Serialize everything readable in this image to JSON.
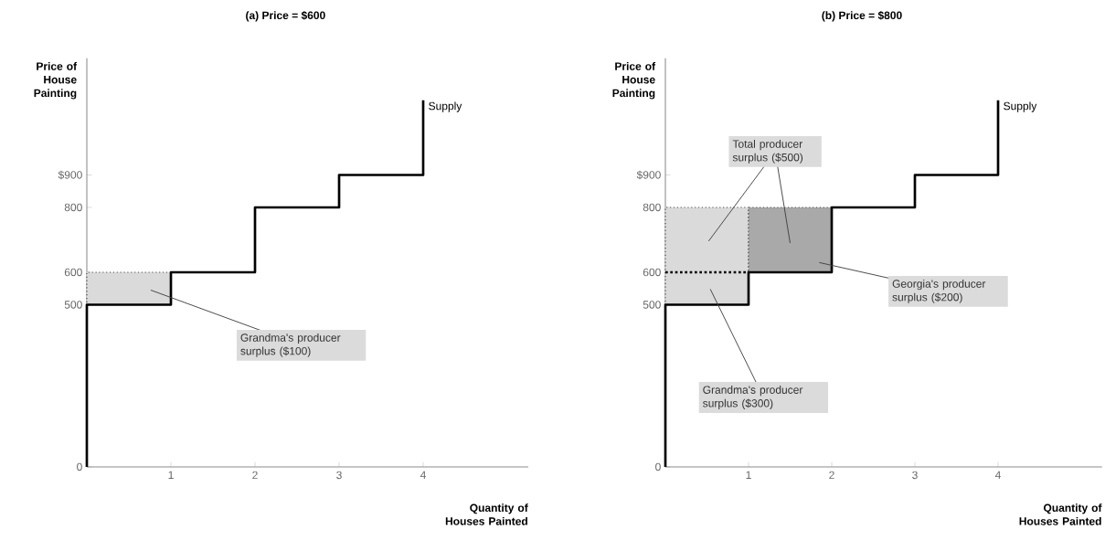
{
  "chart_data": [
    {
      "type": "line",
      "title": "(a) Price = $600",
      "xlabel": "Quantity of Houses Painted",
      "ylabel": "Price of House Painting",
      "xlim": [
        0,
        5.25
      ],
      "ylim": [
        0,
        1260
      ],
      "xticks": [
        1,
        2,
        3,
        4
      ],
      "yticks": [
        0,
        500,
        600,
        800,
        {
          "value": 900,
          "label": "$900"
        }
      ],
      "series": [
        {
          "type": "bar",
          "x": [
            0.5
          ],
          "base": [
            500
          ],
          "values": [
            100
          ],
          "color": "#dadada",
          "line_style": "dotted"
        },
        {
          "name": "Supply",
          "x": [
            0,
            0,
            1,
            1,
            2,
            2,
            3,
            3,
            4,
            4
          ],
          "values": [
            0,
            500,
            500,
            600,
            600,
            800,
            800,
            900,
            900,
            1130
          ],
          "color": "#000000"
        }
      ],
      "annotations": [
        "Grandma's producer surplus ($100)"
      ]
    },
    {
      "type": "line",
      "title": "(b) Price = $800",
      "xlabel": "Quantity of Houses Painted",
      "ylabel": "Price of House Painting",
      "xlim": [
        0,
        5.25
      ],
      "ylim": [
        0,
        1260
      ],
      "xticks": [
        1,
        2,
        3,
        4
      ],
      "yticks": [
        0,
        500,
        600,
        800,
        {
          "value": 900,
          "label": "$900"
        }
      ],
      "series": [
        {
          "type": "bar",
          "x": [
            0.5
          ],
          "base": [
            500
          ],
          "values": [
            300
          ],
          "color": "#dadada",
          "line_style": "dotted"
        },
        {
          "type": "bar",
          "x": [
            1.5
          ],
          "base": [
            600
          ],
          "values": [
            200
          ],
          "color": "#a9a9a9",
          "line_style": "dotted"
        },
        {
          "x": [
            0,
            1
          ],
          "values": [
            600,
            600
          ],
          "color": "#000000",
          "line_style": "dotted"
        },
        {
          "name": "Supply",
          "x": [
            0,
            0,
            1,
            1,
            2,
            2,
            3,
            3,
            4,
            4
          ],
          "values": [
            0,
            500,
            500,
            600,
            600,
            800,
            800,
            900,
            900,
            1130
          ],
          "color": "#000000"
        }
      ],
      "annotations": [
        "Total producer surplus ($500)",
        "Georgia's producer surplus ($200)",
        "Grandma's producer surplus ($300)"
      ]
    }
  ]
}
